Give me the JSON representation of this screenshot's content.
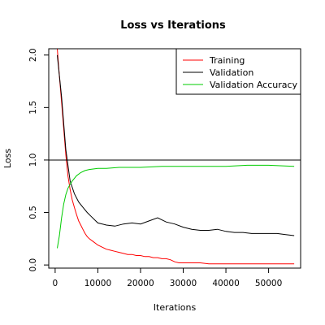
{
  "chart_data": {
    "type": "line",
    "title": "Loss vs Iterations",
    "xlabel": "Iterations",
    "ylabel": "Loss",
    "xlim": [
      -1500,
      57500
    ],
    "ylim": [
      -0.03,
      2.06
    ],
    "x_ticks": [
      0,
      10000,
      20000,
      30000,
      40000,
      50000
    ],
    "x_tick_labels": [
      "0",
      "10000",
      "20000",
      "30000",
      "40000",
      "50000"
    ],
    "y_ticks": [
      0.0,
      0.5,
      1.0,
      1.5,
      2.0
    ],
    "y_tick_labels": [
      "0.0",
      "0.5",
      "1.0",
      "1.5",
      "2.0"
    ],
    "reference_line": {
      "y": 1.0,
      "color": "#000000"
    },
    "legend_position": "top-right",
    "grid": false,
    "series": [
      {
        "name": "Training",
        "color": "#ff0000",
        "x": [
          500,
          1000,
          1500,
          2000,
          2500,
          3000,
          3500,
          4000,
          4500,
          5000,
          5500,
          6000,
          6500,
          7000,
          7500,
          8000,
          9000,
          10000,
          11000,
          12000,
          13000,
          14000,
          15000,
          16000,
          17000,
          18000,
          19000,
          20000,
          21000,
          22000,
          23000,
          24000,
          25000,
          26000,
          27000,
          28000,
          29000,
          30000,
          32000,
          34000,
          36000,
          38000,
          40000,
          42000,
          44000,
          46000,
          48000,
          50000,
          52000,
          54000,
          56000
        ],
        "values": [
          2.06,
          1.8,
          1.55,
          1.3,
          1.05,
          0.85,
          0.72,
          0.62,
          0.55,
          0.48,
          0.42,
          0.38,
          0.34,
          0.3,
          0.27,
          0.25,
          0.22,
          0.19,
          0.17,
          0.15,
          0.14,
          0.13,
          0.12,
          0.11,
          0.1,
          0.1,
          0.09,
          0.09,
          0.08,
          0.08,
          0.07,
          0.07,
          0.06,
          0.06,
          0.05,
          0.03,
          0.02,
          0.02,
          0.02,
          0.02,
          0.01,
          0.01,
          0.01,
          0.01,
          0.01,
          0.01,
          0.01,
          0.01,
          0.01,
          0.01,
          0.01
        ]
      },
      {
        "name": "Validation",
        "color": "#000000",
        "x": [
          500,
          1500,
          2500,
          3500,
          4500,
          5500,
          6500,
          7500,
          8500,
          10000,
          12000,
          14000,
          16000,
          18000,
          20000,
          22000,
          24000,
          26000,
          28000,
          30000,
          32000,
          34000,
          36000,
          38000,
          40000,
          42000,
          44000,
          46000,
          48000,
          50000,
          52000,
          54000,
          56000
        ],
        "values": [
          2.0,
          1.6,
          1.1,
          0.8,
          0.68,
          0.6,
          0.55,
          0.5,
          0.46,
          0.4,
          0.38,
          0.37,
          0.39,
          0.4,
          0.39,
          0.42,
          0.45,
          0.41,
          0.39,
          0.36,
          0.34,
          0.33,
          0.33,
          0.34,
          0.32,
          0.31,
          0.31,
          0.3,
          0.3,
          0.3,
          0.3,
          0.29,
          0.28
        ]
      },
      {
        "name": "Validation Accuracy",
        "color": "#00cc00",
        "x": [
          500,
          1000,
          1500,
          2000,
          2500,
          3000,
          3500,
          4000,
          5000,
          6000,
          7000,
          8000,
          10000,
          12000,
          15000,
          20000,
          25000,
          30000,
          35000,
          40000,
          45000,
          50000,
          56000
        ],
        "values": [
          0.16,
          0.28,
          0.45,
          0.58,
          0.67,
          0.73,
          0.77,
          0.8,
          0.85,
          0.88,
          0.9,
          0.91,
          0.92,
          0.92,
          0.93,
          0.93,
          0.94,
          0.94,
          0.94,
          0.94,
          0.95,
          0.95,
          0.94
        ]
      }
    ]
  }
}
